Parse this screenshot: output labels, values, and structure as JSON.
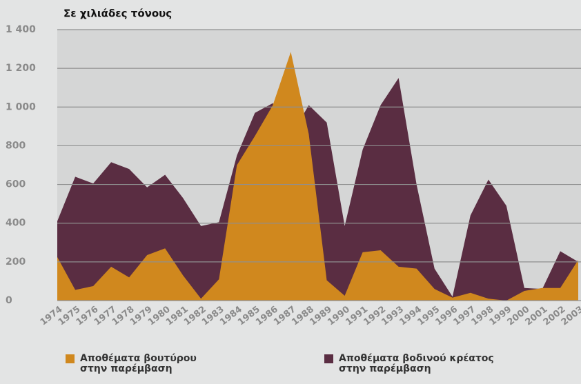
{
  "chart_data": {
    "type": "area",
    "title": "Σε χιλιάδες τόνους",
    "categories": [
      "1974",
      "1975",
      "1976",
      "1977",
      "1978",
      "1979",
      "1980",
      "1981",
      "1982",
      "1983",
      "1984",
      "1985",
      "1986",
      "1987",
      "1988",
      "1989",
      "1990",
      "1991",
      "1992",
      "1993",
      "1994",
      "1995",
      "1996",
      "1997",
      "1998",
      "1999",
      "2000",
      "2001",
      "2002",
      "2003"
    ],
    "series": [
      {
        "name": "Αποθέματα βοδινού κρέατος στην παρέμβαση",
        "color": "#5a2d42",
        "values": [
          410,
          640,
          605,
          715,
          680,
          585,
          650,
          530,
          385,
          405,
          750,
          970,
          1020,
          850,
          1010,
          920,
          385,
          780,
          1010,
          1150,
          600,
          165,
          20,
          440,
          625,
          490,
          65,
          60,
          255,
          200
        ]
      },
      {
        "name": "Αποθέματα βουτύρου στην παρέμβαση",
        "color": "#d0881e",
        "values": [
          225,
          55,
          75,
          175,
          120,
          235,
          270,
          130,
          10,
          110,
          700,
          850,
          1010,
          1285,
          860,
          105,
          25,
          250,
          260,
          175,
          165,
          60,
          15,
          40,
          10,
          0,
          50,
          65,
          65,
          210
        ]
      }
    ],
    "ylim": [
      0,
      1400
    ],
    "yticks": [
      0,
      200,
      400,
      600,
      800,
      {
        "value": 1000,
        "label": "1 000"
      },
      {
        "value": 1200,
        "label": "1 200"
      },
      {
        "value": 1400,
        "label": "1 400"
      }
    ],
    "grid": true
  }
}
